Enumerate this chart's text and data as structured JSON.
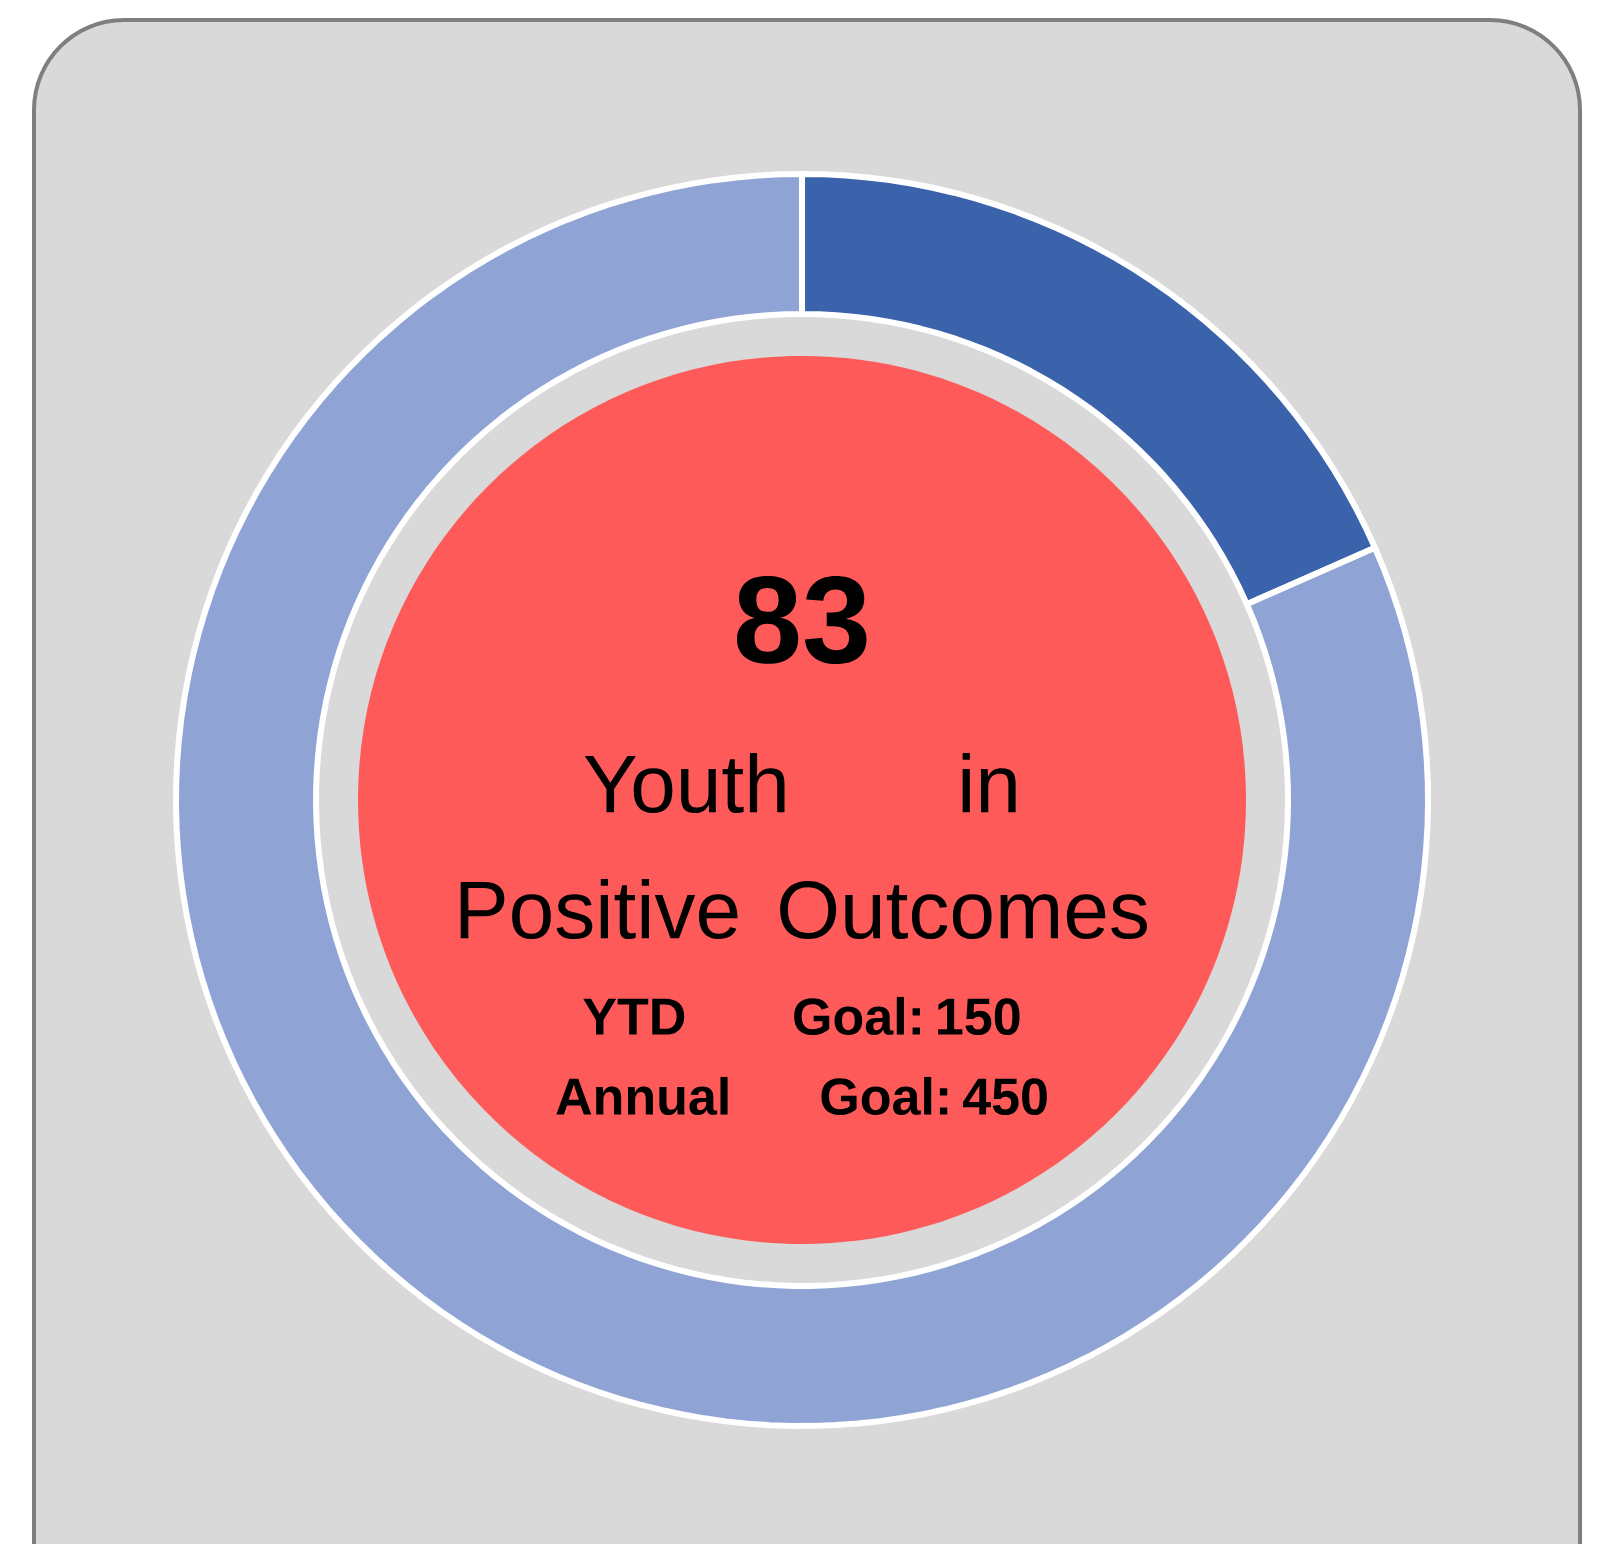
{
  "chart_data": {
    "type": "donut",
    "categories": [
      null,
      null
    ],
    "values": [
      18.4,
      81.6
    ],
    "colors": [
      "#3a63ac",
      "#8fa3d4"
    ],
    "annotations": [
      "83",
      "Youth in Positive Outcomes",
      "YTD Goal: 150",
      "Annual Goal: 450"
    ]
  }
}
